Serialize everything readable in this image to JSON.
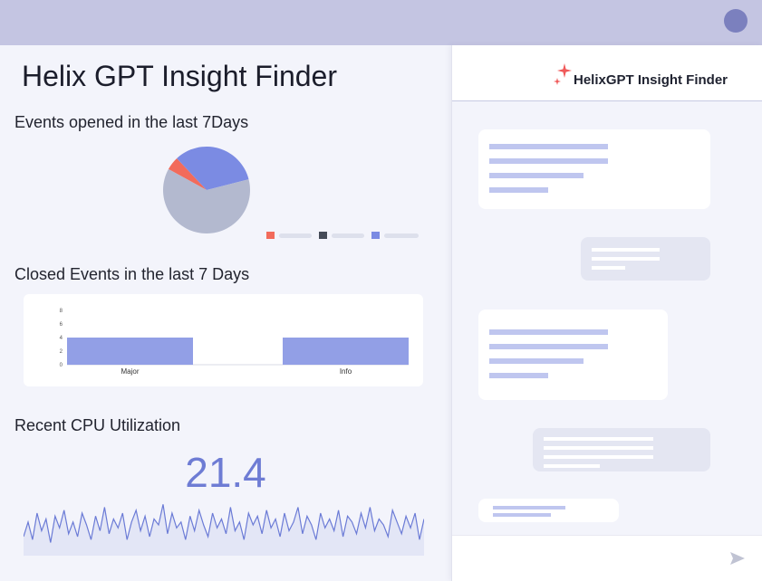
{
  "page": {
    "title": "Helix GPT Insight Finder"
  },
  "sections": {
    "events_opened": "Events opened in the last 7Days",
    "closed_events": "Closed Events in the last 7 Days",
    "cpu": "Recent CPU Utilization"
  },
  "cpu_value": "21.4",
  "chat": {
    "title": "HelixGPT Insight Finder"
  },
  "colors": {
    "accent": "#6e7cd4",
    "pie_red": "#f26b5b",
    "pie_blue": "#7b8be3",
    "pie_gray": "#b3b9cf",
    "bar": "#929fe6",
    "spark_line": "#6b7bd6",
    "spark_fill": "#e3e6f6",
    "legend_dark": "#454b57"
  },
  "icons": {
    "chat_logo": "sparkle-icon",
    "send": "send-icon",
    "user": "avatar"
  },
  "chart_data": [
    {
      "type": "pie",
      "values": [
        5,
        33,
        62
      ],
      "colors": [
        "#f26b5b",
        "#7b8be3",
        "#b3b9cf"
      ],
      "legend_colors": [
        "#f26b5b",
        "#454b57",
        "#7b8be3"
      ]
    },
    {
      "type": "bar",
      "categories": [
        "Major",
        "Info"
      ],
      "values": [
        4,
        4
      ],
      "ylim": [
        0,
        8
      ],
      "yticks": [
        "0",
        "2",
        "4",
        "6",
        "8"
      ]
    },
    {
      "type": "line",
      "values": [
        4,
        9,
        3,
        12,
        6,
        10,
        2,
        11,
        7,
        13,
        5,
        9,
        4,
        12,
        8,
        3,
        11,
        6,
        14,
        5,
        10,
        7,
        12,
        3,
        9,
        13,
        6,
        11,
        4,
        10,
        8,
        15,
        5,
        12,
        7,
        9,
        3,
        11,
        6,
        13,
        8,
        4,
        12,
        7,
        10,
        5,
        14,
        6,
        9,
        3,
        12,
        8,
        11,
        5,
        13,
        7,
        10,
        4,
        12,
        6,
        9,
        14,
        5,
        11,
        8,
        3,
        12,
        7,
        10,
        6,
        13,
        4,
        11,
        9,
        5,
        12,
        7,
        14,
        6,
        10,
        8,
        4,
        13,
        9,
        5,
        11,
        7,
        12,
        3,
        10
      ],
      "ylim": [
        0,
        16
      ]
    }
  ]
}
